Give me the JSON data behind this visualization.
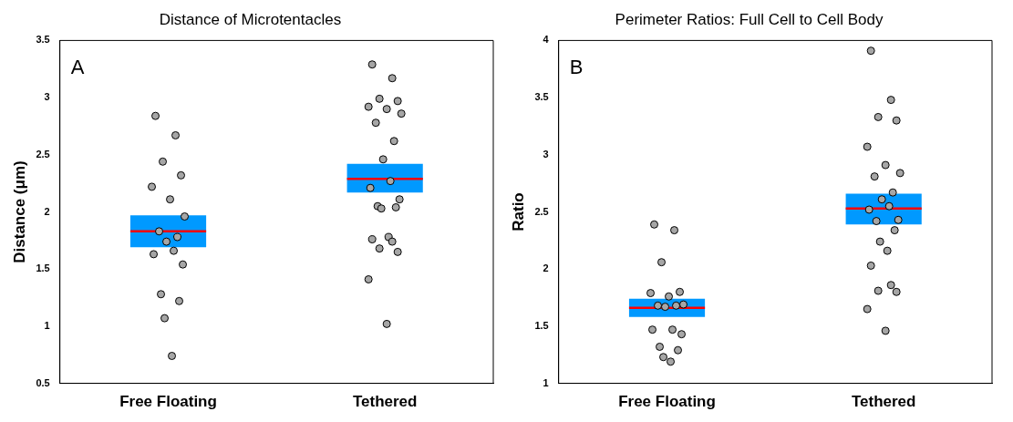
{
  "chart_data": [
    {
      "type": "box",
      "title": "Distance of Microtentacles",
      "ylabel": "Distance (μm)",
      "categories": [
        "Free Floating",
        "Tethered"
      ],
      "ylim": [
        0.5,
        3.5
      ],
      "yticks": [
        0.5,
        1,
        1.5,
        2,
        2.5,
        3,
        3.5
      ],
      "grid": false,
      "legend": false,
      "marker": "circle",
      "annotations": [
        "A"
      ],
      "series": [
        {
          "color": "#0099ff",
          "boxes": [
            {
              "low": 1.69,
              "q1": 1.69,
              "median": 1.83,
              "q3": 1.97,
              "high": 1.97
            },
            {
              "low": 2.17,
              "q1": 2.17,
              "median": 2.29,
              "q3": 2.42,
              "high": 2.42
            }
          ]
        },
        {
          "type": "scatter",
          "color": "#a6a6a6",
          "x": [
            "Free Floating",
            "Free Floating",
            "Free Floating",
            "Free Floating",
            "Free Floating",
            "Free Floating",
            "Free Floating",
            "Free Floating",
            "Free Floating",
            "Free Floating",
            "Free Floating",
            "Free Floating",
            "Free Floating",
            "Free Floating",
            "Free Floating",
            "Free Floating",
            "Free Floating",
            "Tethered",
            "Tethered",
            "Tethered",
            "Tethered",
            "Tethered",
            "Tethered",
            "Tethered",
            "Tethered",
            "Tethered",
            "Tethered",
            "Tethered",
            "Tethered",
            "Tethered",
            "Tethered",
            "Tethered",
            "Tethered",
            "Tethered",
            "Tethered",
            "Tethered",
            "Tethered",
            "Tethered",
            "Tethered",
            "Tethered"
          ],
          "values": [
            2.84,
            2.67,
            2.44,
            2.32,
            2.22,
            2.11,
            1.96,
            1.83,
            1.78,
            1.74,
            1.66,
            1.63,
            1.54,
            1.28,
            1.22,
            1.07,
            0.74,
            3.29,
            3.17,
            2.99,
            2.97,
            2.92,
            2.9,
            2.86,
            2.78,
            2.62,
            2.46,
            2.27,
            2.21,
            2.11,
            2.05,
            2.04,
            2.03,
            1.78,
            1.76,
            1.74,
            1.68,
            1.65,
            1.41,
            1.02
          ]
        }
      ]
    },
    {
      "type": "box",
      "title": "Perimeter Ratios: Full Cell to Cell Body",
      "ylabel": "Ratio",
      "categories": [
        "Free Floating",
        "Tethered"
      ],
      "ylim": [
        1,
        4
      ],
      "yticks": [
        1,
        1.5,
        2,
        2.5,
        3,
        3.5,
        4
      ],
      "grid": false,
      "legend": false,
      "marker": "circle",
      "annotations": [
        "B"
      ],
      "series": [
        {
          "color": "#0099ff",
          "boxes": [
            {
              "low": 1.58,
              "q1": 1.58,
              "median": 1.66,
              "q3": 1.74,
              "high": 1.74
            },
            {
              "low": 2.39,
              "q1": 2.39,
              "median": 2.53,
              "q3": 2.66,
              "high": 2.66
            }
          ]
        },
        {
          "type": "scatter",
          "color": "#a6a6a6",
          "x": [
            "Free Floating",
            "Free Floating",
            "Free Floating",
            "Free Floating",
            "Free Floating",
            "Free Floating",
            "Free Floating",
            "Free Floating",
            "Free Floating",
            "Free Floating",
            "Free Floating",
            "Free Floating",
            "Free Floating",
            "Free Floating",
            "Free Floating",
            "Free Floating",
            "Free Floating",
            "Tethered",
            "Tethered",
            "Tethered",
            "Tethered",
            "Tethered",
            "Tethered",
            "Tethered",
            "Tethered",
            "Tethered",
            "Tethered",
            "Tethered",
            "Tethered",
            "Tethered",
            "Tethered",
            "Tethered",
            "Tethered",
            "Tethered",
            "Tethered",
            "Tethered",
            "Tethered",
            "Tethered",
            "Tethered",
            "Tethered"
          ],
          "values": [
            2.39,
            2.34,
            2.06,
            1.8,
            1.79,
            1.76,
            1.69,
            1.68,
            1.68,
            1.67,
            1.47,
            1.47,
            1.43,
            1.32,
            1.29,
            1.23,
            1.19,
            3.91,
            3.48,
            3.33,
            3.3,
            3.07,
            2.91,
            2.84,
            2.81,
            2.67,
            2.61,
            2.55,
            2.52,
            2.43,
            2.42,
            2.34,
            2.24,
            2.16,
            2.03,
            1.86,
            1.81,
            1.8,
            1.65,
            1.46
          ]
        }
      ]
    }
  ]
}
